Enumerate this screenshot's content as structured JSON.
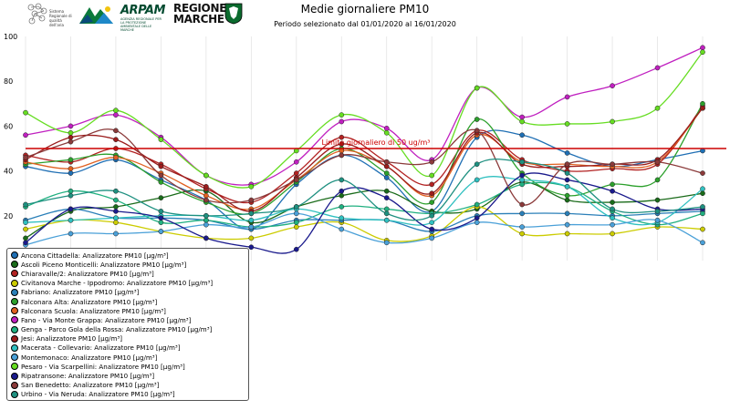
{
  "header": {
    "logo_system": "Sistema Regionale di qualità dell'aria",
    "logo_arpam": "ARPAM",
    "logo_arpam_sub": "AGENZIA REGIONALE PER LA PROTEZIONE AMBIENTALE DELLE MARCHE",
    "logo_regione_line1": "REGIONE",
    "logo_regione_line2": "MARCHE"
  },
  "chart_data": {
    "type": "line",
    "title": "Medie giornaliere PM10",
    "subtitle": "Periodo selezionato dal 01/01/2020 al 16/01/2020",
    "x": [
      "2020-01-01",
      "2020-01-02",
      "2020-01-03",
      "2020-01-04",
      "2020-01-05",
      "2020-01-06",
      "2020-01-07",
      "2020-01-08",
      "2020-01-09",
      "2020-01-10",
      "2020-01-11",
      "2020-01-12",
      "2020-01-13",
      "2020-01-14",
      "2020-01-15",
      "2020-01-16"
    ],
    "ylim": [
      0,
      100
    ],
    "yticks": [
      20,
      40,
      60,
      80,
      100
    ],
    "threshold": {
      "value": 50,
      "label": "Limite giornaliero di 50 ug/m³",
      "color": "#cc0000"
    },
    "grid": "vertical",
    "legend_position": "bottom-left",
    "series": [
      {
        "name": "Ancona Cittadella: Analizzatore PM10 [µg/m³]",
        "color": "#1f6fb4",
        "values": [
          42,
          39,
          45,
          36,
          27,
          14,
          34,
          47,
          37,
          22,
          55,
          56,
          48,
          42,
          45,
          49
        ]
      },
      {
        "name": "Ascoli Piceno Monticelli: Analizzatore PM10 [µg/m³]",
        "color": "#1a6b1a",
        "values": [
          10,
          22,
          24,
          28,
          31,
          17,
          24,
          29,
          31,
          22,
          23,
          35,
          27,
          26,
          27,
          30
        ]
      },
      {
        "name": "Chiaravalle/2: Analizzatore PM10 [µg/m³]",
        "color": "#b22222",
        "values": [
          47,
          44,
          50,
          43,
          32,
          26,
          39,
          55,
          44,
          34,
          58,
          45,
          40,
          41,
          43,
          69
        ]
      },
      {
        "name": "Civitanova Marche - Ippodromo: Analizzatore PM10 [µg/m³]",
        "color": "#cccc00",
        "values": [
          14,
          18,
          17,
          13,
          10,
          10,
          15,
          17,
          9,
          11,
          24,
          12,
          12,
          12,
          15,
          14
        ]
      },
      {
        "name": "Fabriano: Analizzatore PM10 [µg/m³]",
        "color": "#2a7fb8",
        "values": [
          18,
          23,
          19,
          19,
          18,
          14,
          18,
          18,
          18,
          13,
          20,
          21,
          21,
          20,
          21,
          22
        ]
      },
      {
        "name": "Falconara Alta: Analizzatore PM10 [µg/m³]",
        "color": "#2ca02c",
        "values": [
          43,
          45,
          47,
          35,
          26,
          21,
          35,
          50,
          39,
          26,
          63,
          39,
          29,
          34,
          36,
          70
        ]
      },
      {
        "name": "Falconara Scuola: Analizzatore PM10 [µg/m³]",
        "color": "#e06020",
        "values": [
          44,
          41,
          46,
          39,
          29,
          23,
          36,
          49,
          42,
          29,
          56,
          44,
          43,
          42,
          44,
          68
        ]
      },
      {
        "name": "Fano - Via Monte Grappa: Analizzatore PM10 [µg/m³]",
        "color": "#c020c0",
        "values": [
          56,
          60,
          65,
          55,
          38,
          34,
          44,
          62,
          59,
          45,
          77,
          64,
          73,
          78,
          86,
          95
        ]
      },
      {
        "name": "Genga - Parco Gola della Rossa: Analizzatore PM10 [µg/m³]",
        "color": "#20b080",
        "values": [
          24,
          31,
          27,
          17,
          18,
          15,
          17,
          24,
          23,
          21,
          25,
          34,
          33,
          22,
          16,
          21
        ]
      },
      {
        "name": "Jesi: Analizzatore PM10 [µg/m³]",
        "color": "#9b1c1c",
        "values": [
          45,
          55,
          54,
          42,
          33,
          22,
          37,
          52,
          42,
          30,
          57,
          43,
          42,
          43,
          45,
          68
        ]
      },
      {
        "name": "Macerata - Collevario: Analizzatore PM10 [µg/m³]",
        "color": "#30c0c0",
        "values": [
          17,
          18,
          19,
          20,
          20,
          18,
          23,
          19,
          18,
          17,
          36,
          36,
          33,
          19,
          17,
          32
        ]
      },
      {
        "name": "Montemonaco: Analizzatore PM10 [µg/m³]",
        "color": "#4aa0d8",
        "values": [
          7,
          12,
          12,
          13,
          16,
          15,
          21,
          14,
          8,
          10,
          17,
          15,
          16,
          16,
          18,
          8
        ]
      },
      {
        "name": "Pesaro - Via Scarpellini: Analizzatore PM10 [µg/m³]",
        "color": "#66dd22",
        "values": [
          66,
          57,
          67,
          54,
          38,
          33,
          49,
          65,
          57,
          38,
          77,
          62,
          61,
          62,
          68,
          93
        ]
      },
      {
        "name": "Ripatransone: Analizzatore PM10 [µg/m³]",
        "color": "#1a1a8c",
        "values": [
          8,
          23,
          22,
          19,
          10,
          6,
          5,
          31,
          28,
          14,
          19,
          38,
          36,
          31,
          23,
          23
        ]
      },
      {
        "name": "San Benedetto: Analizzatore PM10 [µg/m³]",
        "color": "#8b3a3a",
        "values": [
          46,
          53,
          58,
          38,
          27,
          27,
          36,
          47,
          44,
          44,
          58,
          25,
          43,
          43,
          44,
          39
        ]
      },
      {
        "name": "Urbino - Via Neruda: Analizzatore PM10 [µg/m³]",
        "color": "#1e9080",
        "values": [
          25,
          29,
          31,
          22,
          20,
          21,
          24,
          36,
          21,
          20,
          43,
          44,
          39,
          23,
          22,
          24
        ]
      }
    ]
  }
}
